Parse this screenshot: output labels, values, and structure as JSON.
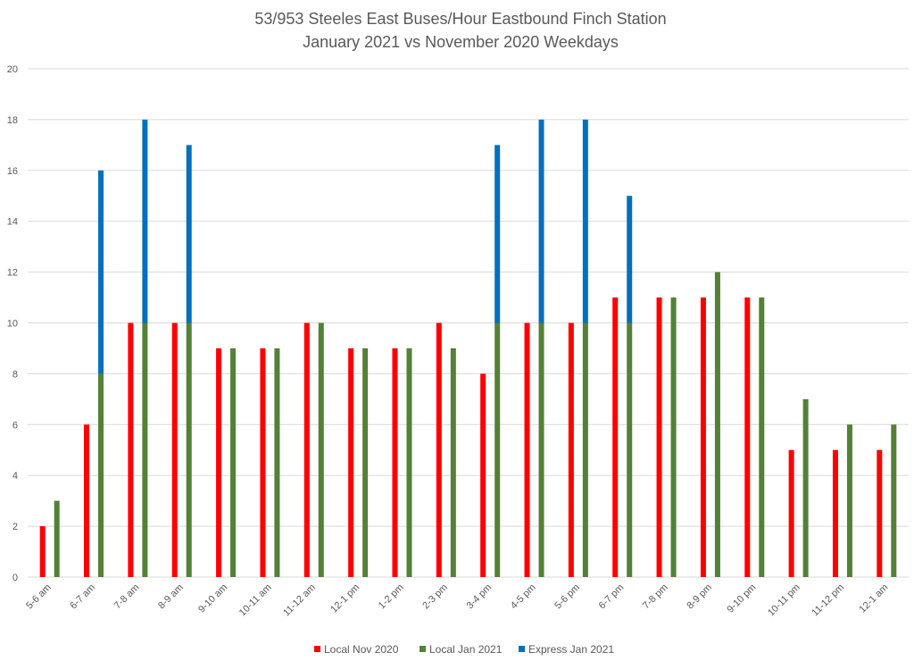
{
  "chart_data": {
    "type": "bar",
    "stacked_series": "Local Jan 2021 + Express Jan 2021",
    "title": "53/953 Steeles East Buses/Hour Eastbound Finch Station",
    "subtitle": "January 2021 vs November 2020 Weekdays",
    "xlabel": "",
    "ylabel": "",
    "ylim": [
      0,
      20
    ],
    "yticks": [
      0,
      2,
      4,
      6,
      8,
      10,
      12,
      14,
      16,
      18,
      20
    ],
    "grid": true,
    "legend_position": "bottom",
    "categories": [
      "5-6 am",
      "6-7 am",
      "7-8 am",
      "8-9 am",
      "9-10 am",
      "10-11 am",
      "11-12 am",
      "12-1 pm",
      "1-2 pm",
      "2-3 pm",
      "3-4 pm",
      "4-5 pm",
      "5-6 pm",
      "6-7 pm",
      "7-8 pm",
      "8-9 pm",
      "9-10 pm",
      "10-11 pm",
      "11-12 pm",
      "12-1 am"
    ],
    "series": [
      {
        "name": "Local Nov 2020",
        "color": "#ff0000",
        "values": [
          2,
          6,
          10,
          10,
          9,
          9,
          10,
          9,
          9,
          10,
          8,
          10,
          10,
          11,
          11,
          11,
          11,
          5,
          5,
          5
        ]
      },
      {
        "name": "Local Jan 2021",
        "color": "#538135",
        "values": [
          3,
          8,
          10,
          10,
          9,
          9,
          10,
          9,
          9,
          9,
          10,
          10,
          10,
          10,
          11,
          12,
          11,
          7,
          6,
          6
        ]
      },
      {
        "name": "Express Jan 2021",
        "color": "#0070c0",
        "values": [
          0,
          8,
          8,
          7,
          0,
          0,
          0,
          0,
          0,
          0,
          7,
          8,
          8,
          5,
          0,
          0,
          0,
          0,
          0,
          0
        ]
      }
    ]
  }
}
